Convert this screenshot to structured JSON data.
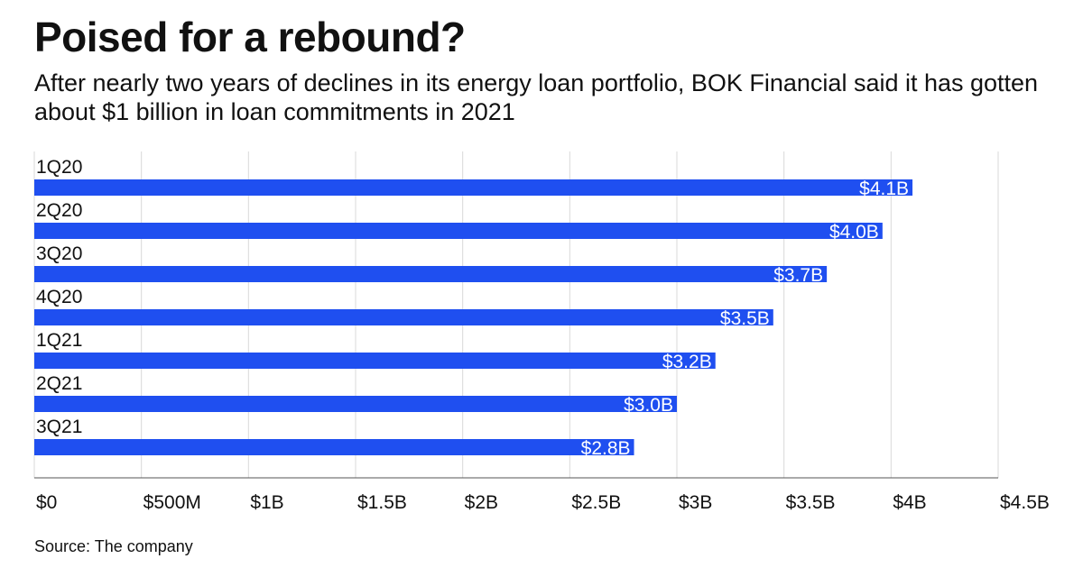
{
  "header": {
    "title": "Poised for a rebound?",
    "subtitle": "After nearly two years of declines in its energy loan portfolio, BOK Financial said it has gotten about $1 billion in loan commitments in 2021"
  },
  "footer": {
    "source": "Source: The company"
  },
  "colors": {
    "bar": "#1f4ff0",
    "bar_label": "#ffffff",
    "grid": "#d9d9d9"
  },
  "chart_data": {
    "type": "bar",
    "orientation": "horizontal",
    "categories": [
      "1Q20",
      "2Q20",
      "3Q20",
      "4Q20",
      "1Q21",
      "2Q21",
      "3Q21"
    ],
    "values": [
      4.1,
      3.96,
      3.7,
      3.45,
      3.18,
      3.0,
      2.8
    ],
    "value_labels": [
      "$4.1B",
      "$4.0B",
      "$3.7B",
      "$3.5B",
      "$3.2B",
      "$3.0B",
      "$2.8B"
    ],
    "x_ticks": [
      0,
      0.5,
      1,
      1.5,
      2,
      2.5,
      3,
      3.5,
      4,
      4.5
    ],
    "x_tick_labels": [
      "$0",
      "$500M",
      "$1B",
      "$1.5B",
      "$2B",
      "$2.5B",
      "$3B",
      "$3.5B",
      "$4B",
      "$4.5B"
    ],
    "xlim": [
      0,
      4.5
    ],
    "grid": true
  }
}
